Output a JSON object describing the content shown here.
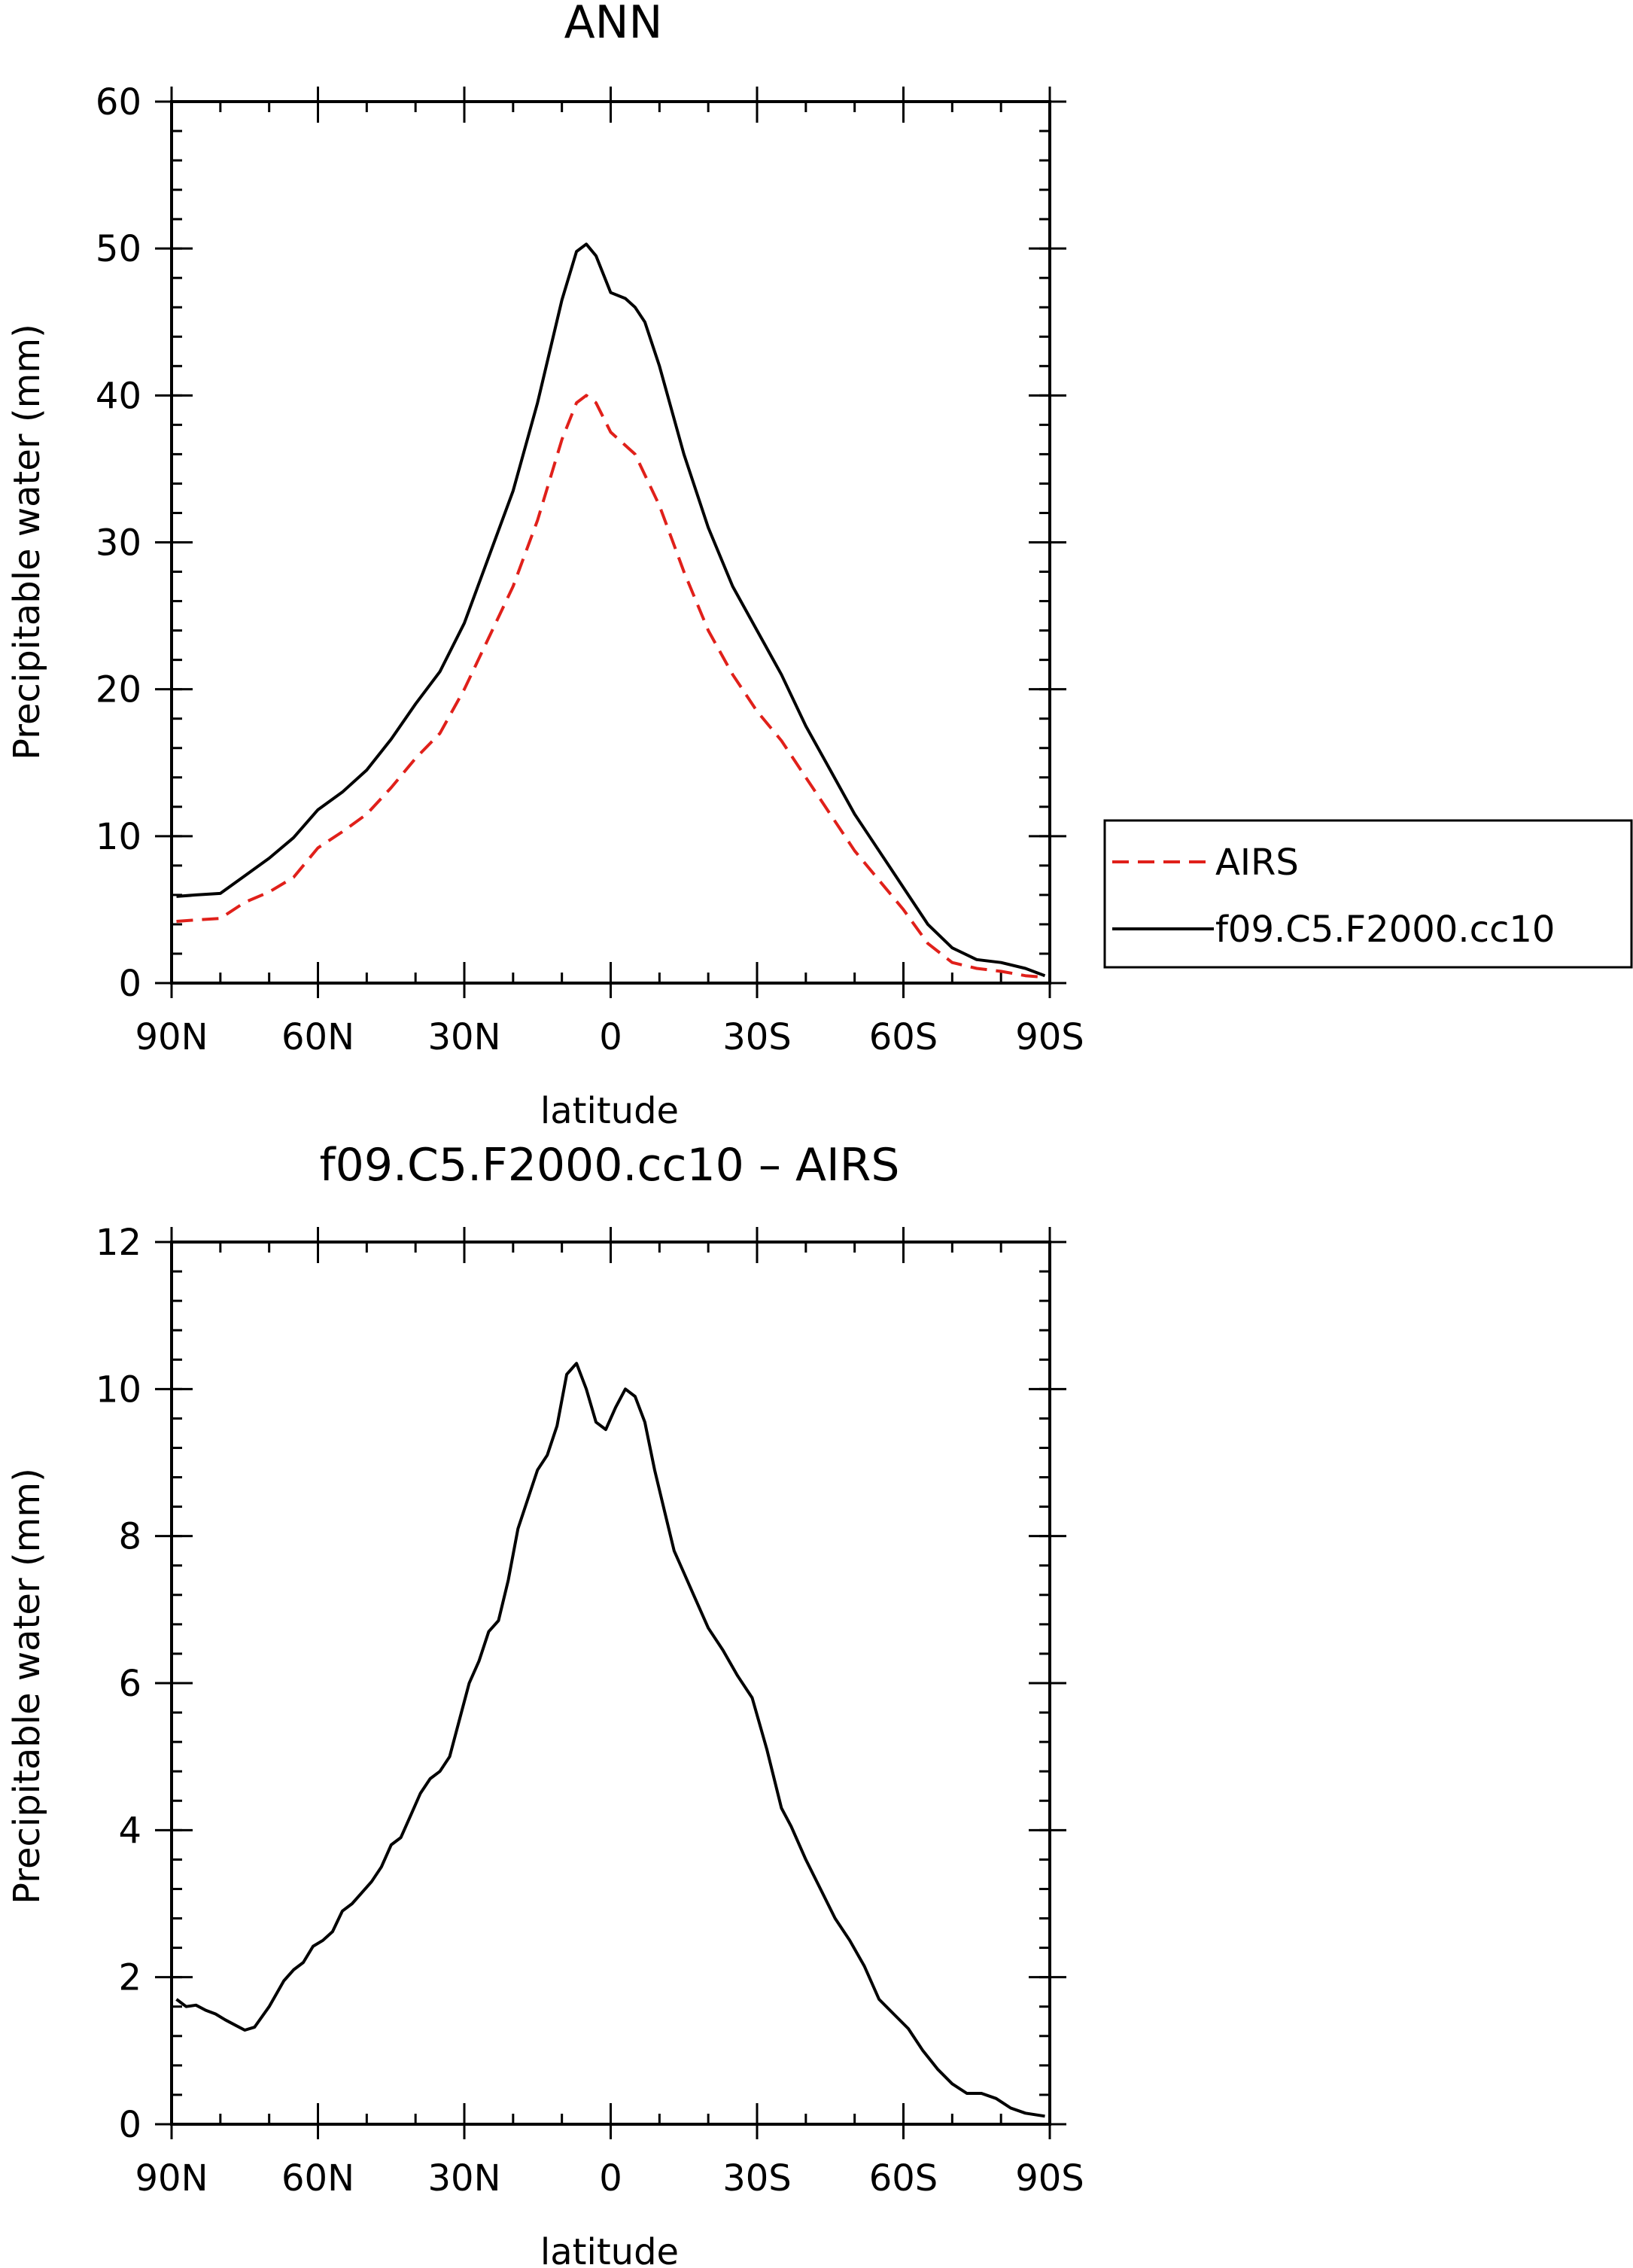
{
  "chart_data": [
    {
      "type": "line",
      "title": "ANN",
      "xlabel": "latitude",
      "ylabel": "Precipitable water (mm)",
      "xlim": [
        -90,
        90
      ],
      "ylim": [
        0,
        60
      ],
      "x_reversed": true,
      "xticks": [
        {
          "value": -90,
          "label": "90N"
        },
        {
          "value": -60,
          "label": "60N"
        },
        {
          "value": -30,
          "label": "30N"
        },
        {
          "value": 0,
          "label": "0"
        },
        {
          "value": 30,
          "label": "30S"
        },
        {
          "value": 60,
          "label": "60S"
        },
        {
          "value": 90,
          "label": "90S"
        }
      ],
      "yticks": [
        0,
        10,
        20,
        30,
        40,
        50,
        60
      ],
      "legend": "outside-right",
      "series": [
        {
          "name": "AIRS",
          "color": "#e0201a",
          "dash": "dashed",
          "x": [
            -89,
            -85,
            -80,
            -75,
            -70,
            -65,
            -60,
            -55,
            -50,
            -45,
            -40,
            -35,
            -30,
            -25,
            -20,
            -15,
            -10,
            -7,
            -5,
            -3,
            0,
            5,
            10,
            15,
            20,
            25,
            30,
            35,
            40,
            45,
            50,
            55,
            60,
            65,
            70,
            75,
            80,
            85,
            89
          ],
          "y": [
            4.2,
            4.3,
            4.4,
            5.5,
            6.2,
            7.2,
            9.2,
            10.3,
            11.5,
            13.3,
            15.3,
            17.0,
            20.0,
            23.5,
            27.0,
            31.5,
            37.0,
            39.5,
            40.0,
            39.5,
            37.5,
            36.0,
            32.5,
            28.0,
            24.0,
            21.0,
            18.5,
            16.5,
            14.0,
            11.5,
            9.0,
            7.0,
            5.0,
            2.7,
            1.4,
            1.0,
            0.8,
            0.5,
            0.4
          ]
        },
        {
          "name": "f09.C5.F2000.cc10",
          "color": "#000000",
          "dash": "solid",
          "x": [
            -89,
            -85,
            -80,
            -75,
            -70,
            -65,
            -60,
            -55,
            -50,
            -45,
            -40,
            -35,
            -30,
            -25,
            -20,
            -15,
            -10,
            -7,
            -5,
            -3,
            0,
            3,
            5,
            7,
            10,
            15,
            20,
            25,
            30,
            35,
            40,
            45,
            50,
            55,
            60,
            65,
            70,
            75,
            80,
            85,
            89
          ],
          "y": [
            5.9,
            6.0,
            6.1,
            7.3,
            8.5,
            9.9,
            11.8,
            13.0,
            14.5,
            16.6,
            19.0,
            21.2,
            24.5,
            29.0,
            33.5,
            39.5,
            46.5,
            49.8,
            50.3,
            49.5,
            47.0,
            46.6,
            46.0,
            45.0,
            42.0,
            36.0,
            31.0,
            27.0,
            24.0,
            21.0,
            17.5,
            14.5,
            11.5,
            9.0,
            6.5,
            4.0,
            2.4,
            1.6,
            1.4,
            1.0,
            0.5
          ]
        }
      ]
    },
    {
      "type": "line",
      "title": "f09.C5.F2000.cc10 – AIRS",
      "xlabel": "latitude",
      "ylabel": "Precipitable water (mm)",
      "xlim": [
        -90,
        90
      ],
      "ylim": [
        0,
        12
      ],
      "x_reversed": true,
      "xticks": [
        {
          "value": -90,
          "label": "90N"
        },
        {
          "value": -60,
          "label": "60N"
        },
        {
          "value": -30,
          "label": "30N"
        },
        {
          "value": 0,
          "label": "0"
        },
        {
          "value": 30,
          "label": "30S"
        },
        {
          "value": 60,
          "label": "60S"
        },
        {
          "value": 90,
          "label": "90S"
        }
      ],
      "yticks": [
        0,
        2,
        4,
        6,
        8,
        10,
        12
      ],
      "series": [
        {
          "color": "#000000",
          "dash": "solid",
          "x": [
            -89,
            -87,
            -85,
            -83,
            -81,
            -79,
            -77,
            -75,
            -73,
            -70,
            -67,
            -65,
            -63,
            -61,
            -59,
            -57,
            -55,
            -53,
            -51,
            -49,
            -47,
            -45,
            -43,
            -41,
            -39,
            -37,
            -35,
            -33,
            -31,
            -29,
            -27,
            -25,
            -23,
            -21,
            -19,
            -17,
            -15,
            -13,
            -11,
            -9,
            -7,
            -5,
            -3,
            -1,
            1,
            3,
            5,
            7,
            9,
            11,
            13,
            15,
            17,
            20,
            23,
            26,
            29,
            32,
            35,
            37,
            40,
            43,
            46,
            49,
            52,
            55,
            58,
            61,
            64,
            67,
            70,
            73,
            76,
            79,
            82,
            85,
            88,
            89
          ],
          "y": [
            1.7,
            1.6,
            1.62,
            1.55,
            1.5,
            1.42,
            1.35,
            1.28,
            1.32,
            1.6,
            1.95,
            2.1,
            2.2,
            2.42,
            2.5,
            2.62,
            2.9,
            3.0,
            3.15,
            3.3,
            3.5,
            3.8,
            3.9,
            4.2,
            4.5,
            4.7,
            4.8,
            5.0,
            5.5,
            6.0,
            6.3,
            6.7,
            6.85,
            7.4,
            8.1,
            8.5,
            8.9,
            9.1,
            9.5,
            10.2,
            10.35,
            10.0,
            9.55,
            9.45,
            9.75,
            10.0,
            9.9,
            9.55,
            8.9,
            8.35,
            7.8,
            7.5,
            7.2,
            6.75,
            6.45,
            6.1,
            5.8,
            5.1,
            4.3,
            4.05,
            3.6,
            3.2,
            2.8,
            2.5,
            2.15,
            1.7,
            1.5,
            1.3,
            1.0,
            0.75,
            0.55,
            0.42,
            0.42,
            0.35,
            0.22,
            0.15,
            0.12,
            0.11
          ]
        }
      ]
    }
  ]
}
